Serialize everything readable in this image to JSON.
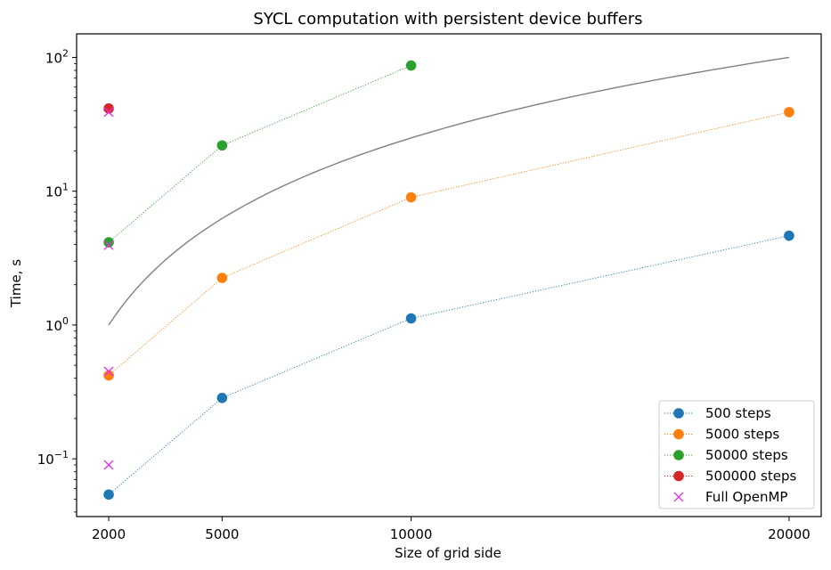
{
  "chart_data": {
    "type": "line",
    "title": "SYCL computation with persistent device buffers",
    "xlabel": "Size of grid side",
    "ylabel": "Time, s",
    "xlim": [
      1150,
      20850
    ],
    "ylim": [
      0.037,
      150
    ],
    "yscale": "log",
    "x_ticks": [
      2000,
      5000,
      10000,
      20000
    ],
    "x_tick_labels": [
      "2000",
      "5000",
      "10000",
      "20000"
    ],
    "y_ticks": [
      0.1,
      1,
      10,
      100
    ],
    "y_tick_labels": [
      {
        "base": "10",
        "exp": "−1"
      },
      {
        "base": "10",
        "exp": "0"
      },
      {
        "base": "10",
        "exp": "1"
      },
      {
        "base": "10",
        "exp": "2"
      }
    ],
    "grid": false,
    "legend_position": "lower right",
    "series": [
      {
        "name": "500 steps",
        "color": "#1f77b4",
        "style": "dotted line with circle markers",
        "x": [
          2000,
          5000,
          10000,
          20000
        ],
        "y": [
          0.054,
          0.285,
          1.12,
          4.65
        ]
      },
      {
        "name": "5000 steps",
        "color": "#ff7f0e",
        "style": "dotted line with circle markers",
        "x": [
          2000,
          5000,
          10000,
          20000
        ],
        "y": [
          0.42,
          2.25,
          9.0,
          39.0
        ]
      },
      {
        "name": "50000 steps",
        "color": "#2ca02c",
        "style": "dotted line with circle markers",
        "x": [
          2000,
          5000,
          10000
        ],
        "y": [
          4.15,
          22.0,
          87.0
        ]
      },
      {
        "name": "500000 steps",
        "color": "#d62728",
        "style": "dotted line with circle markers",
        "x": [
          2000
        ],
        "y": [
          41.5
        ]
      },
      {
        "name": "Full OpenMP",
        "color": "#e72ee7",
        "style": "x markers",
        "x": [
          2000,
          2000,
          2000,
          2000
        ],
        "y": [
          0.09,
          0.45,
          3.95,
          39.0
        ]
      }
    ],
    "reference_curve": {
      "color": "#808080",
      "style": "solid line",
      "formula": "y = (x / 2000)^2",
      "x_range": [
        2000,
        20000
      ]
    }
  }
}
